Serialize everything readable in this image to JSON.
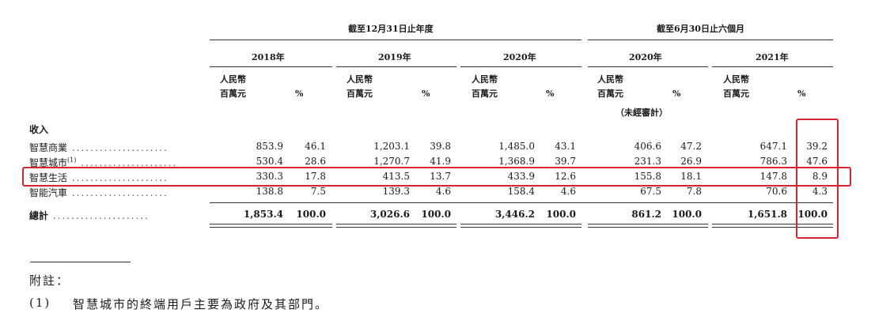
{
  "headers": {
    "group1": "截至12月31日止年度",
    "group2": "截至6月30日止六個月",
    "years": [
      "2018年",
      "2019年",
      "2020年",
      "2020年",
      "2021年"
    ],
    "unit_line1": "人民幣",
    "unit_line2": "百萬元",
    "pct": "%",
    "unaudited": "（未經審計）"
  },
  "section_label": "收入",
  "rows": [
    {
      "label": "智慧商業",
      "values": [
        "853.9",
        "46.1",
        "1,203.1",
        "39.8",
        "1,485.0",
        "43.1",
        "406.6",
        "47.2",
        "647.1",
        "39.2"
      ]
    },
    {
      "label": "智慧城市",
      "sup": "(1)",
      "values": [
        "530.4",
        "28.6",
        "1,270.7",
        "41.9",
        "1,368.9",
        "39.7",
        "231.3",
        "26.9",
        "786.3",
        "47.6"
      ]
    },
    {
      "label": "智慧生活",
      "values": [
        "330.3",
        "17.8",
        "413.5",
        "13.7",
        "433.9",
        "12.6",
        "155.8",
        "18.1",
        "147.8",
        "8.9"
      ]
    },
    {
      "label": "智能汽車",
      "values": [
        "138.8",
        "7.5",
        "139.3",
        "4.6",
        "158.4",
        "4.6",
        "67.5",
        "7.8",
        "70.6",
        "4.3"
      ]
    }
  ],
  "total": {
    "label": "總計",
    "values": [
      "1,853.4",
      "100.0",
      "3,026.6",
      "100.0",
      "3,446.2",
      "100.0",
      "861.2",
      "100.0",
      "1,651.8",
      "100.0"
    ]
  },
  "notes": {
    "heading": "附註：",
    "items": [
      {
        "num": "(1)",
        "text": "智慧城市的終端用戶主要為政府及其部門。"
      }
    ]
  },
  "highlight_color": "#d9232e"
}
